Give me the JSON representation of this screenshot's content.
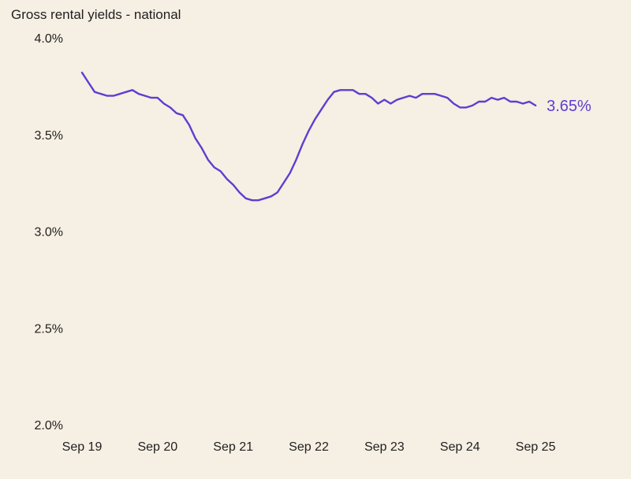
{
  "chart_data": {
    "type": "line",
    "title": "Gross rental yields - national",
    "xlabel": "",
    "ylabel": "",
    "ylim": [
      2.0,
      4.0
    ],
    "grid": false,
    "yticks": [
      {
        "value": 4.0,
        "label": "4.0%"
      },
      {
        "value": 3.5,
        "label": "3.5%"
      },
      {
        "value": 3.0,
        "label": "3.0%"
      },
      {
        "value": 2.5,
        "label": "2.5%"
      },
      {
        "value": 2.0,
        "label": "2.0%"
      }
    ],
    "xticks": [
      {
        "label": "Sep 19",
        "index": 0
      },
      {
        "label": "Sep 20",
        "index": 12
      },
      {
        "label": "Sep 21",
        "index": 24
      },
      {
        "label": "Sep 22",
        "index": 36
      },
      {
        "label": "Sep 23",
        "index": 48
      },
      {
        "label": "Sep 24",
        "index": 60
      },
      {
        "label": "Sep 25",
        "index": 72
      }
    ],
    "series": [
      {
        "color": "#5b3fd1",
        "end_label": "3.65%",
        "values": [
          3.82,
          3.77,
          3.72,
          3.71,
          3.7,
          3.7,
          3.71,
          3.72,
          3.73,
          3.71,
          3.7,
          3.69,
          3.69,
          3.66,
          3.64,
          3.61,
          3.6,
          3.55,
          3.48,
          3.43,
          3.37,
          3.33,
          3.31,
          3.27,
          3.24,
          3.2,
          3.17,
          3.16,
          3.16,
          3.17,
          3.18,
          3.2,
          3.25,
          3.3,
          3.37,
          3.45,
          3.52,
          3.58,
          3.63,
          3.68,
          3.72,
          3.73,
          3.73,
          3.73,
          3.71,
          3.71,
          3.69,
          3.66,
          3.68,
          3.66,
          3.68,
          3.69,
          3.7,
          3.69,
          3.71,
          3.71,
          3.71,
          3.7,
          3.69,
          3.66,
          3.64,
          3.64,
          3.65,
          3.67,
          3.67,
          3.69,
          3.68,
          3.69,
          3.67,
          3.67,
          3.66,
          3.67,
          3.65
        ]
      }
    ]
  }
}
